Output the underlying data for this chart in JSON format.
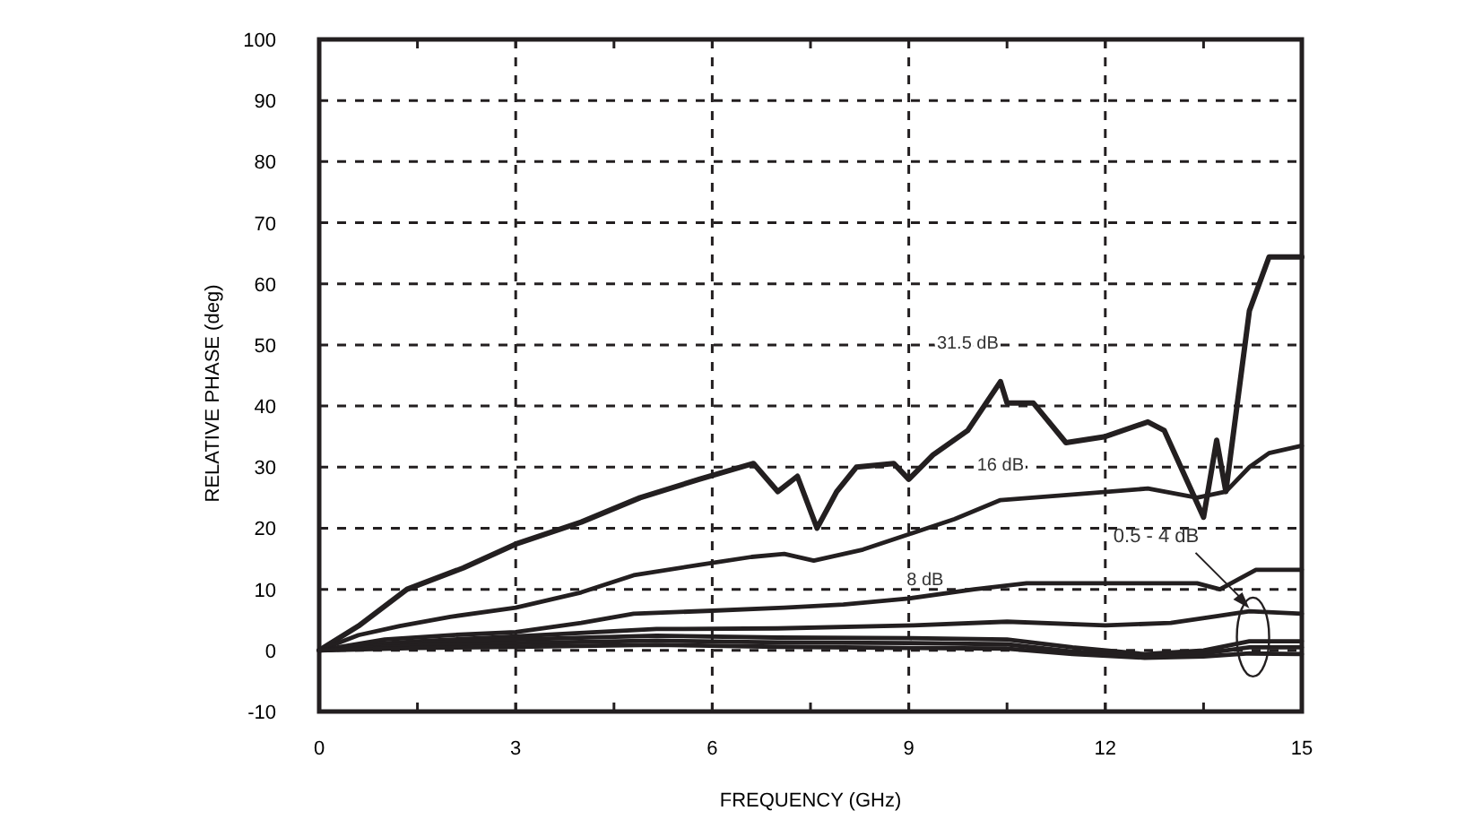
{
  "chart_data": {
    "type": "line",
    "xlabel": "FREQUENCY (GHz)",
    "ylabel": "RELATIVE PHASE (deg)",
    "xlim": [
      0,
      15
    ],
    "ylim": [
      -10,
      100
    ],
    "xticks": [
      0,
      {
        "value": 1.5,
        "label": null
      },
      3,
      {
        "value": 4.5,
        "label": null
      },
      6,
      {
        "value": 7.5,
        "label": null
      },
      9,
      {
        "value": 10.5,
        "label": null
      },
      12,
      {
        "value": 13.5,
        "label": null
      },
      15
    ],
    "yticks": [
      -10,
      0,
      10,
      20,
      30,
      40,
      50,
      60,
      70,
      80,
      90,
      100
    ],
    "grid": true,
    "line_style": "solid",
    "marker": "none",
    "annotations": [
      {
        "text": "0.5 - 4 dB",
        "x": 14.2,
        "y": 6
      }
    ],
    "series": [
      {
        "name": "31.5 dB",
        "color": "#231f20",
        "x": [
          0,
          0.6,
          1.34,
          2.2,
          3.0,
          4.0,
          4.9,
          5.8,
          6.63,
          7.0,
          7.3,
          7.6,
          7.9,
          8.2,
          8.77,
          9.0,
          9.37,
          9.9,
          10.4,
          10.5,
          10.9,
          11.4,
          12.0,
          12.65,
          12.9,
          13.5,
          13.7,
          13.84,
          14.2,
          14.5,
          15
        ],
        "values": [
          0,
          4,
          10,
          13.5,
          17.4,
          21,
          25,
          28,
          30.6,
          26,
          28.5,
          20,
          26,
          30,
          30.6,
          28,
          32,
          36,
          44,
          40.5,
          40.5,
          34,
          35,
          37.4,
          36,
          21.8,
          34.4,
          26,
          55.6,
          64.4,
          64.4
        ]
      },
      {
        "name": "16 dB",
        "color": "#231f20",
        "x": [
          0,
          0.6,
          1.23,
          2.0,
          3.0,
          4.0,
          4.8,
          5.8,
          6.6,
          7.1,
          7.55,
          8.3,
          9.0,
          9.7,
          10.4,
          11.5,
          12.65,
          13.4,
          13.84,
          14.2,
          14.5,
          15
        ],
        "values": [
          0,
          2.5,
          4,
          5.5,
          7,
          9.5,
          12.3,
          14,
          15.3,
          15.8,
          14.7,
          16.5,
          19,
          21.5,
          24.6,
          25.5,
          26.5,
          25,
          26,
          30,
          32.3,
          33.5
        ]
      },
      {
        "name": "8 dB",
        "color": "#231f20",
        "x": [
          0,
          1.0,
          2.0,
          3.0,
          4.0,
          4.8,
          6.0,
          7.1,
          8.0,
          9.0,
          10.0,
          10.8,
          12.0,
          13.4,
          13.75,
          14.3,
          15
        ],
        "values": [
          0,
          1.8,
          2.5,
          3,
          4.5,
          6,
          6.5,
          7,
          7.5,
          8.5,
          10,
          11,
          11,
          11,
          10,
          13.2,
          13.2
        ]
      },
      {
        "color": "#231f20",
        "x": [
          0,
          0.8,
          1.5,
          3.0,
          5.15,
          7.0,
          9.07,
          10.5,
          12.0,
          13.0,
          13.7,
          14.2,
          15
        ],
        "values": [
          0,
          1,
          1.5,
          2.3,
          3.5,
          3.6,
          4.1,
          4.7,
          4.1,
          4.5,
          5.6,
          6.4,
          6
        ]
      },
      {
        "color": "#231f20",
        "x": [
          0,
          1.5,
          3.0,
          5.15,
          7.0,
          9.0,
          10.5,
          11.5,
          12.6,
          13.5,
          14.2,
          15
        ],
        "values": [
          0,
          1.2,
          1.8,
          2.4,
          2.1,
          2,
          1.8,
          0.5,
          -0.6,
          0,
          1.5,
          1.5
        ]
      },
      {
        "color": "#231f20",
        "x": [
          0,
          1.5,
          3.0,
          5.15,
          7.0,
          9.0,
          10.5,
          11.5,
          12.6,
          13.5,
          14.2,
          15
        ],
        "values": [
          0,
          0.8,
          1.2,
          1.6,
          1.3,
          1.2,
          1,
          -0.2,
          -0.9,
          -0.5,
          0.5,
          0.5
        ]
      },
      {
        "color": "#231f20",
        "x": [
          0,
          1.5,
          3.0,
          5.15,
          7.0,
          9.0,
          10.5,
          11.5,
          12.6,
          13.5,
          14.2,
          15
        ],
        "values": [
          0,
          0.4,
          0.6,
          0.9,
          0.6,
          0.4,
          0.3,
          -0.6,
          -1.2,
          -1,
          -0.5,
          -0.6
        ]
      }
    ]
  }
}
